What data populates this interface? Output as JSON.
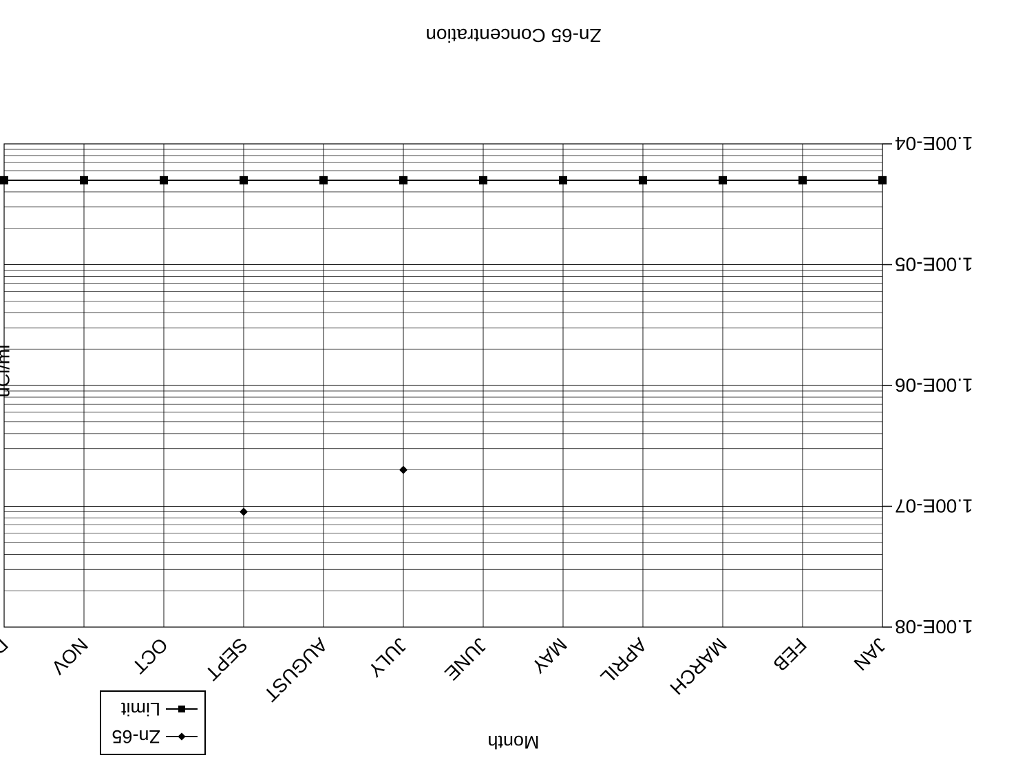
{
  "chart_data": {
    "type": "line",
    "title": "Zn-65 Concentration",
    "xlabel": "Month",
    "ylabel": "uCi/ml",
    "y_scale": "log",
    "ylim": [
      1e-08,
      0.0001
    ],
    "y_ticks": [
      "1.00E-04",
      "1.00E-05",
      "1.00E-06",
      "1.00E-07",
      "1.00E-08"
    ],
    "y_tick_values": [
      0.0001,
      1e-05,
      1e-06,
      1e-07,
      1e-08
    ],
    "categories": [
      "JAN",
      "FEB",
      "MARCH",
      "APRIL",
      "MAY",
      "JUNE",
      "JULY",
      "AUGUST",
      "SEPT",
      "OCT",
      "NOV",
      "DEC"
    ],
    "series": [
      {
        "name": "Zn-65",
        "marker": "diamond",
        "values": [
          null,
          null,
          null,
          null,
          null,
          null,
          2e-07,
          null,
          9e-08,
          null,
          null,
          null
        ]
      },
      {
        "name": "Limit",
        "marker": "square",
        "values": [
          5e-05,
          5e-05,
          5e-05,
          5e-05,
          5e-05,
          5e-05,
          5e-05,
          5e-05,
          5e-05,
          5e-05,
          5e-05,
          5e-05
        ]
      }
    ],
    "grid": true,
    "legend_position": "bottom-left",
    "image_orientation": "rotated 180 degrees"
  }
}
